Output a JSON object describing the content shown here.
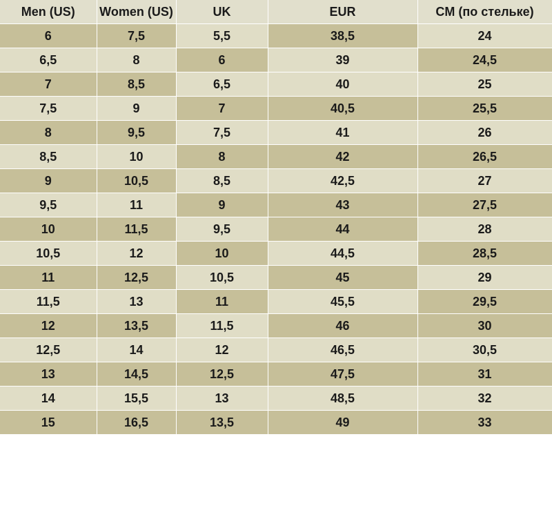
{
  "table": {
    "headers": [
      "Men (US)",
      "Women (US)",
      "UK",
      "EUR",
      "CM (по стельке)"
    ],
    "rows": [
      {
        "cells": [
          "6",
          "7,5",
          "5,5",
          "38,5",
          "24"
        ],
        "shade": [
          "dark",
          "dark",
          "light",
          "dark",
          "light"
        ]
      },
      {
        "cells": [
          "6,5",
          "8",
          "6",
          "39",
          "24,5"
        ],
        "shade": [
          "light",
          "light",
          "dark",
          "light",
          "dark"
        ]
      },
      {
        "cells": [
          "7",
          "8,5",
          "6,5",
          "40",
          "25"
        ],
        "shade": [
          "dark",
          "dark",
          "light",
          "light",
          "light"
        ]
      },
      {
        "cells": [
          "7,5",
          "9",
          "7",
          "40,5",
          "25,5"
        ],
        "shade": [
          "light",
          "light",
          "dark",
          "dark",
          "dark"
        ]
      },
      {
        "cells": [
          "8",
          "9,5",
          "7,5",
          "41",
          "26"
        ],
        "shade": [
          "dark",
          "dark",
          "light",
          "light",
          "light"
        ]
      },
      {
        "cells": [
          "8,5",
          "10",
          "8",
          "42",
          "26,5"
        ],
        "shade": [
          "light",
          "light",
          "dark",
          "dark",
          "dark"
        ]
      },
      {
        "cells": [
          "9",
          "10,5",
          "8,5",
          "42,5",
          "27"
        ],
        "shade": [
          "dark",
          "dark",
          "light",
          "light",
          "light"
        ]
      },
      {
        "cells": [
          "9,5",
          "11",
          "9",
          "43",
          "27,5"
        ],
        "shade": [
          "light",
          "light",
          "dark",
          "dark",
          "dark"
        ]
      },
      {
        "cells": [
          "10",
          "11,5",
          "9,5",
          "44",
          "28"
        ],
        "shade": [
          "dark",
          "dark",
          "light",
          "dark",
          "light"
        ]
      },
      {
        "cells": [
          "10,5",
          "12",
          "10",
          "44,5",
          "28,5"
        ],
        "shade": [
          "light",
          "light",
          "dark",
          "light",
          "dark"
        ]
      },
      {
        "cells": [
          "11",
          "12,5",
          "10,5",
          "45",
          "29"
        ],
        "shade": [
          "dark",
          "dark",
          "light",
          "dark",
          "light"
        ]
      },
      {
        "cells": [
          "11,5",
          "13",
          "11",
          "45,5",
          "29,5"
        ],
        "shade": [
          "light",
          "light",
          "dark",
          "light",
          "dark"
        ]
      },
      {
        "cells": [
          "12",
          "13,5",
          "11,5",
          "46",
          "30"
        ],
        "shade": [
          "dark",
          "dark",
          "light",
          "dark",
          "dark"
        ]
      },
      {
        "cells": [
          "12,5",
          "14",
          "12",
          "46,5",
          "30,5"
        ],
        "shade": [
          "light",
          "light",
          "light",
          "light",
          "light"
        ]
      },
      {
        "cells": [
          "13",
          "14,5",
          "12,5",
          "47,5",
          "31"
        ],
        "shade": [
          "dark",
          "dark",
          "dark",
          "dark",
          "dark"
        ]
      },
      {
        "cells": [
          "14",
          "15,5",
          "13",
          "48,5",
          "32"
        ],
        "shade": [
          "light",
          "light",
          "light",
          "light",
          "light"
        ]
      },
      {
        "cells": [
          "15",
          "16,5",
          "13,5",
          "49",
          "33"
        ],
        "shade": [
          "dark",
          "dark",
          "dark",
          "dark",
          "dark"
        ]
      }
    ]
  },
  "colors": {
    "light": "#e0ddc6",
    "dark": "#c6bf99",
    "header": "#e1dfcc",
    "text": "#1a1a1a"
  }
}
